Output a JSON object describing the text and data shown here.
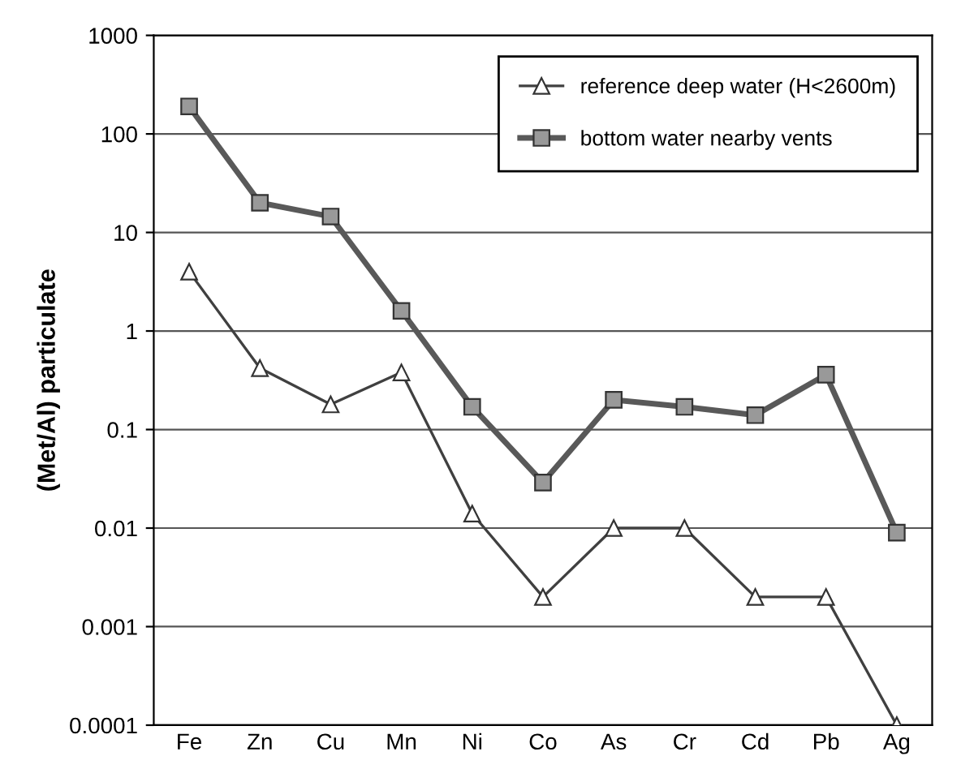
{
  "chart_data": {
    "type": "line",
    "ylabel": "(Met/Al) particulate",
    "categories": [
      "Fe",
      "Zn",
      "Cu",
      "Mn",
      "Ni",
      "Co",
      "As",
      "Cr",
      "Cd",
      "Pb",
      "Ag"
    ],
    "series": [
      {
        "name": "reference deep water (H<2600m)",
        "color": "#404040",
        "marker": "triangle",
        "values": [
          4,
          0.42,
          0.18,
          0.38,
          0.014,
          0.002,
          0.01,
          0.01,
          0.002,
          0.002,
          0.0001
        ]
      },
      {
        "name": "bottom water nearby vents",
        "color": "#595959",
        "marker": "square",
        "values": [
          190,
          20,
          14.5,
          1.6,
          0.17,
          0.029,
          0.2,
          0.17,
          0.14,
          0.36,
          0.009
        ]
      }
    ],
    "log": "y",
    "ylim": [
      0.0001,
      1000
    ],
    "yticks": [
      {
        "value": 0.0001,
        "label": "0.0001"
      },
      {
        "value": 0.001,
        "label": "0.001"
      },
      {
        "value": 0.01,
        "label": "0.01"
      },
      {
        "value": 0.1,
        "label": "0.1"
      },
      {
        "value": 1,
        "label": "1"
      },
      {
        "value": 10,
        "label": "10"
      },
      {
        "value": 100,
        "label": "100"
      },
      {
        "value": 1000,
        "label": "1000"
      }
    ],
    "grid": "y",
    "legend": "top right",
    "line_style": "solid"
  }
}
